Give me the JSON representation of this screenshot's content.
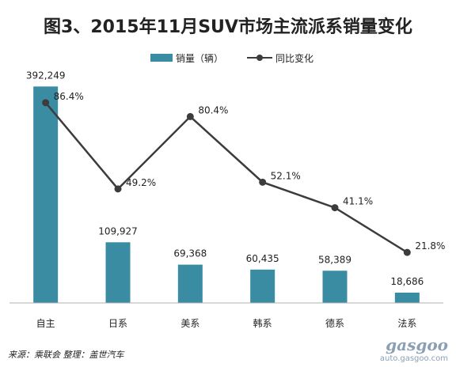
{
  "chart_data": {
    "type": "bar",
    "title": "图3、2015年11月SUV市场主流派系销量变化",
    "categories": [
      "自主",
      "日系",
      "美系",
      "韩系",
      "德系",
      "法系"
    ],
    "series": [
      {
        "name": "销量（辆）",
        "type": "bar",
        "values": [
          392249,
          109927,
          69368,
          60435,
          58389,
          18686
        ],
        "labels": [
          "392,249",
          "109,927",
          "69,368",
          "60,435",
          "58,389",
          "18,686"
        ]
      },
      {
        "name": "同比变化",
        "type": "line",
        "values": [
          86.4,
          49.2,
          80.4,
          52.1,
          41.1,
          21.8
        ],
        "labels": [
          "86.4%",
          "49.2%",
          "80.4%",
          "52.1%",
          "41.1%",
          "21.8%"
        ]
      }
    ],
    "bar_ylim": [
      0,
      420000
    ],
    "line_ylim": [
      0,
      100
    ],
    "legend_position": "top-center",
    "grid": false
  },
  "colors": {
    "bar": "#3a8ca3",
    "line": "#3c3c3c",
    "axis": "#b0b0b0"
  },
  "footer": {
    "source": "来源：乘联会  整理：盖世汽车"
  },
  "watermark": {
    "logo": "gasgoo",
    "url": "auto.gasgoo.com"
  }
}
